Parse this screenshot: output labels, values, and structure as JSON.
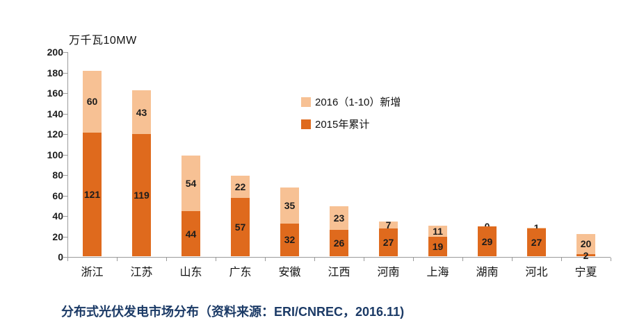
{
  "header": {
    "unit_label": "万千瓦10MW"
  },
  "legend": {
    "items": [
      {
        "label": "2016（1-10）新增",
        "color": "#F7C194"
      },
      {
        "label": "2015年累计",
        "color": "#DF6A1D"
      }
    ]
  },
  "caption": "分布式光伏发电市场分布（资料来源：ERI/CNREC，2016.11)",
  "chart_data": {
    "type": "bar",
    "stacked": true,
    "title": "分布式光伏发电市场分布",
    "unit": "万千瓦10MW",
    "categories": [
      "浙江",
      "江苏",
      "山东",
      "广东",
      "安徽",
      "江西",
      "河南",
      "上海",
      "湖南",
      "河北",
      "宁夏"
    ],
    "series": [
      {
        "name": "2015年累计",
        "color": "#DF6A1D",
        "values": [
          121,
          119,
          44,
          57,
          32,
          26,
          27,
          19,
          29,
          27,
          2
        ]
      },
      {
        "name": "2016（1-10）新增",
        "color": "#F7C194",
        "values": [
          60,
          43,
          54,
          22,
          35,
          23,
          7,
          11,
          0,
          1,
          20
        ]
      }
    ],
    "totals": [
      181,
      162,
      98,
      79,
      67,
      49,
      34,
      30,
      29,
      28,
      22
    ],
    "xlabel": "",
    "ylabel": "万千瓦10MW",
    "ylim": [
      0,
      200
    ],
    "ytick_step": 20,
    "yticks": [
      0,
      20,
      40,
      60,
      80,
      100,
      120,
      140,
      160,
      180,
      200
    ],
    "grid": false,
    "legend_position": "inside-center-right",
    "data_labels": true
  }
}
